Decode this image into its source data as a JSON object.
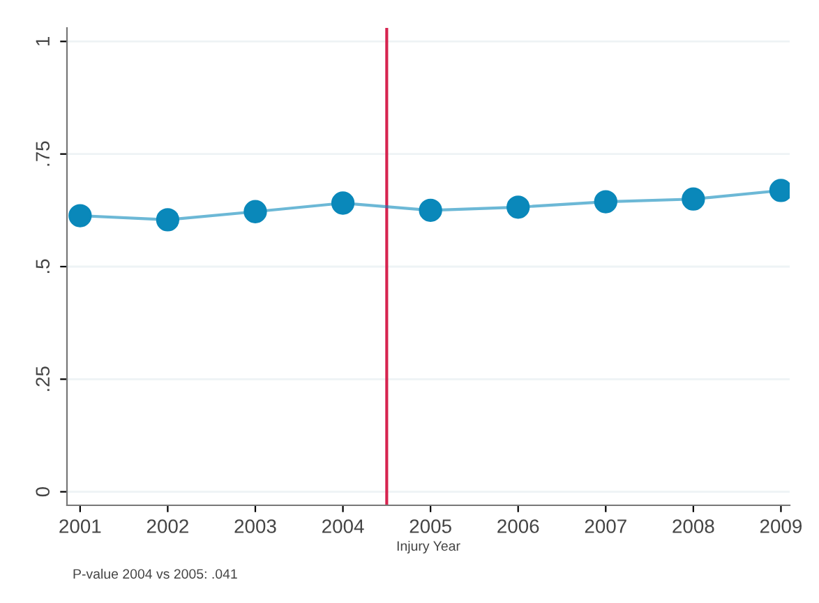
{
  "chart_data": {
    "type": "line",
    "xlabel": "Injury Year",
    "x": [
      2001,
      2002,
      2003,
      2004,
      2005,
      2006,
      2007,
      2008,
      2009
    ],
    "series": [
      {
        "color": "#0a88ba",
        "values": [
          0.613,
          0.604,
          0.622,
          0.641,
          0.625,
          0.632,
          0.644,
          0.65,
          0.669
        ]
      }
    ],
    "xlim": [
      2000.85,
      2009.1
    ],
    "xticks": [
      2001,
      2002,
      2003,
      2004,
      2005,
      2006,
      2007,
      2008,
      2009
    ],
    "ylim": [
      -0.03,
      1.03
    ],
    "yticks": [
      {
        "value": 0,
        "label": "0"
      },
      {
        "value": 0.25,
        "label": ".25"
      },
      {
        "value": 0.5,
        "label": ".5"
      },
      {
        "value": 0.75,
        "label": ".75"
      },
      {
        "value": 1,
        "label": "1"
      }
    ],
    "grid": "y",
    "marker": "circle",
    "line_style": "solid",
    "ref_lines": [
      {
        "axis": "x",
        "value": 2004.5,
        "color": "#d6244f"
      }
    ],
    "annotations": [
      "P-value 2004 vs 2005: .041"
    ]
  }
}
